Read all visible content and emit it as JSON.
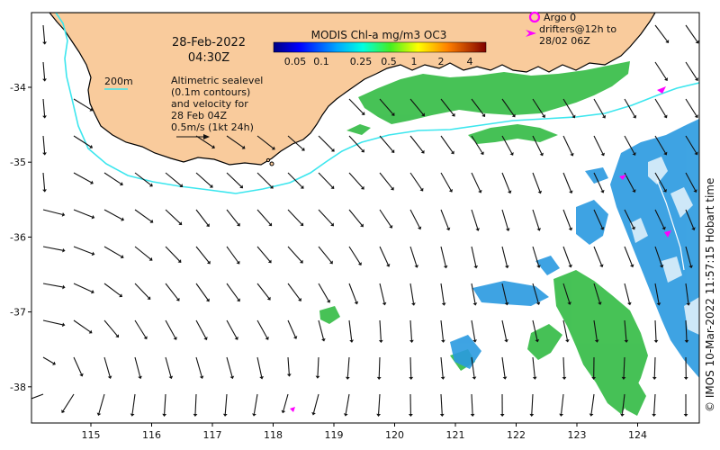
{
  "date_label": "28-Feb-2022",
  "time_label": "04:30Z",
  "contour_label": "200m",
  "legend_lines": [
    "Altimetric sealevel",
    "(0.1m contours)",
    "and velocity for",
    "28 Feb 04Z",
    "0.5m/s (1kt 24h)"
  ],
  "colorbar": {
    "title": "MODIS Chl-a mg/m3 OC3",
    "ticks": [
      "0.05",
      "0.1",
      "0.25",
      "0.5",
      "1",
      "2",
      "4"
    ]
  },
  "argo_label": "Argo 0",
  "drifters_lines": [
    "drifters@12h to",
    "28/02 06Z"
  ],
  "credit": "© IMOS 10-Mar-2022 11:57:15 Hobart time",
  "x_ticks": [
    "115",
    "116",
    "117",
    "118",
    "119",
    "120",
    "121",
    "122",
    "123",
    "124"
  ],
  "y_ticks": [
    "-34",
    "-35",
    "-36",
    "-37",
    "-38"
  ],
  "colors": {
    "land": "#f9cb9c",
    "contour": "#3ce6ee",
    "chl_green": "#33bb44",
    "chl_blue": "#2a9ae0",
    "argo": "#ff00ff"
  }
}
